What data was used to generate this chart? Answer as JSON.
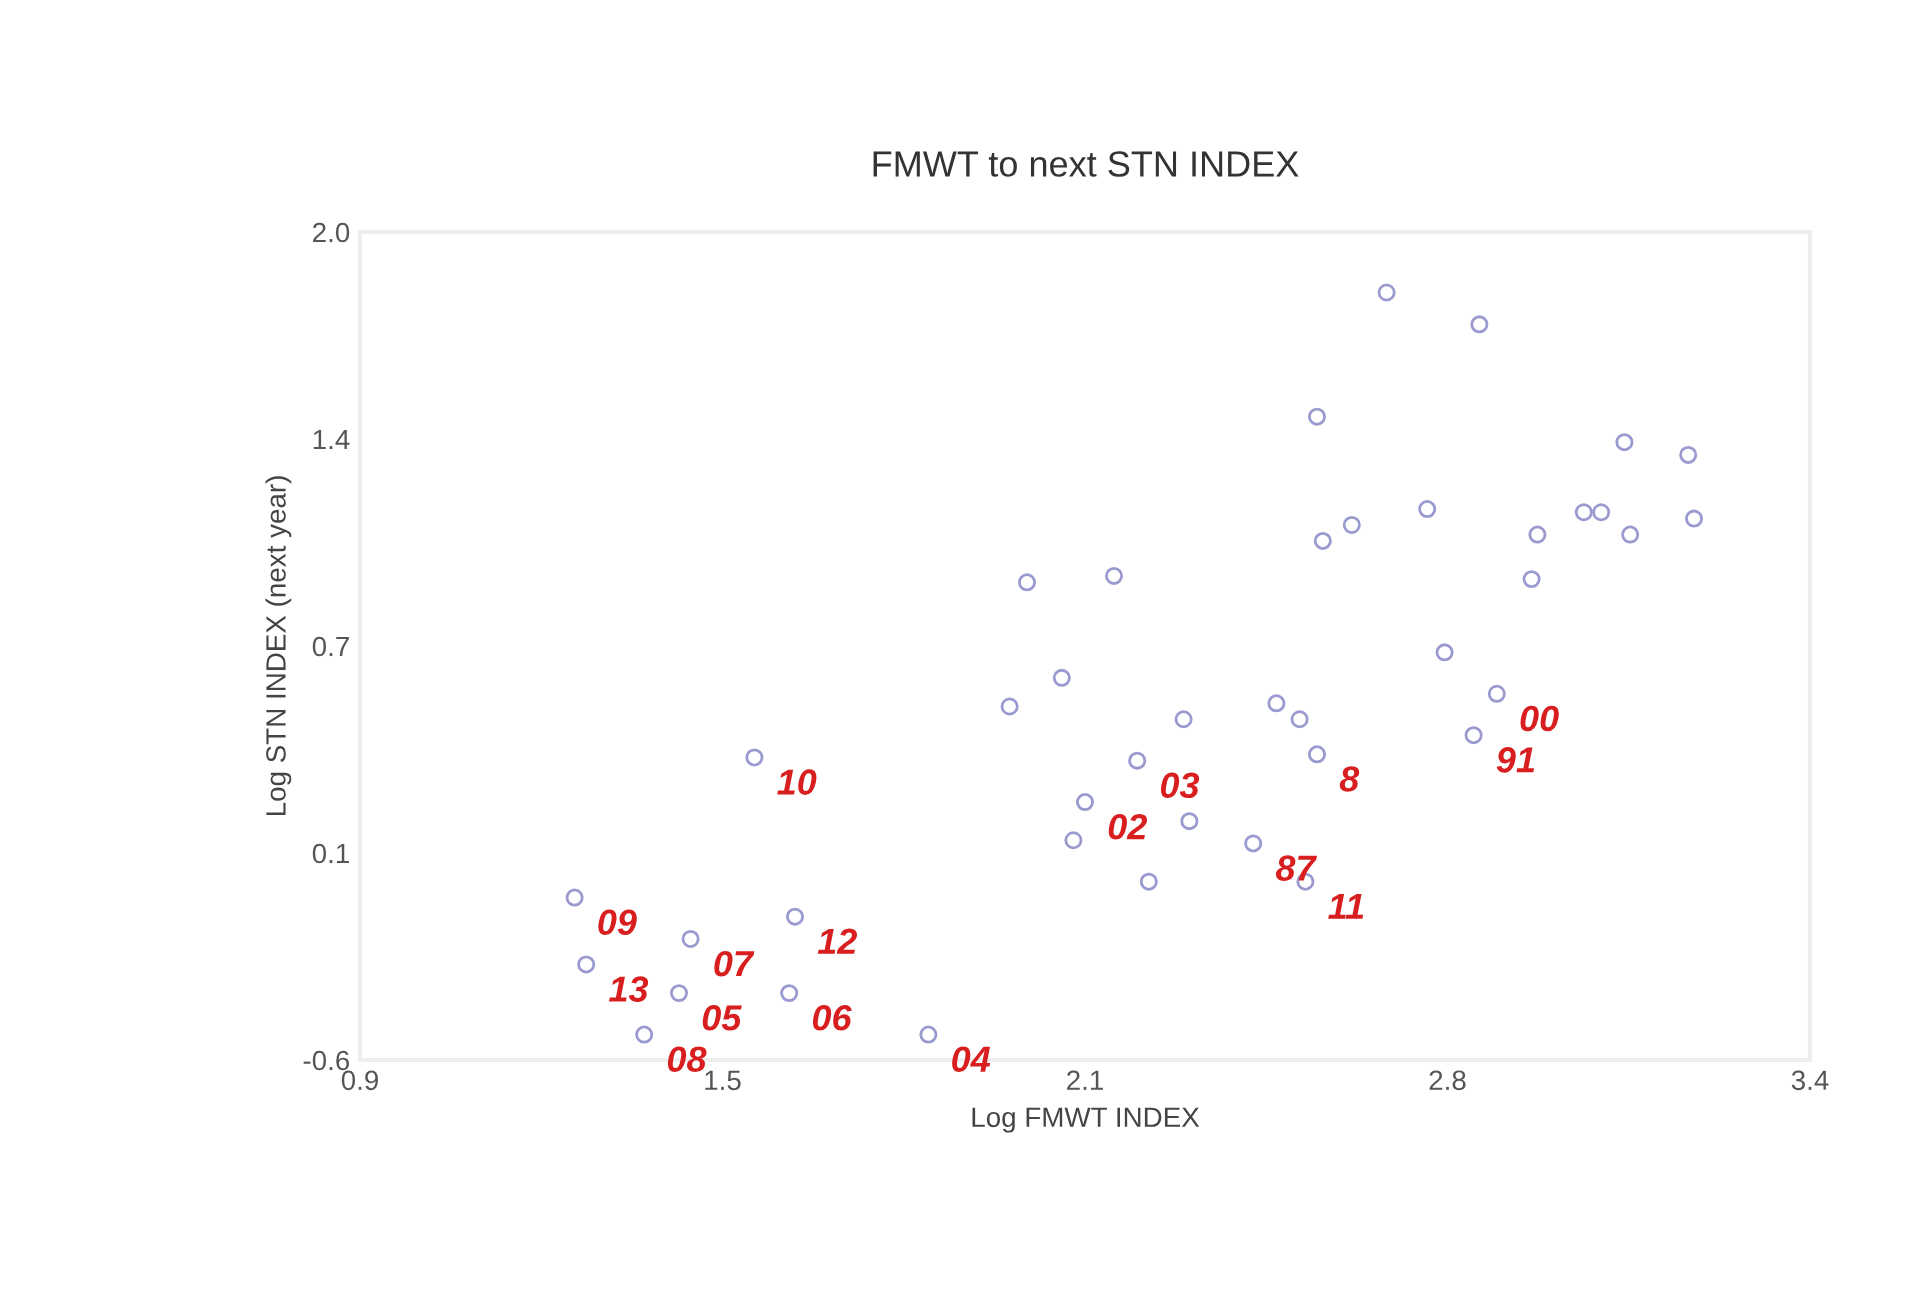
{
  "chart_data": {
    "type": "scatter",
    "title": "FMWT to next STN INDEX",
    "xlabel": "Log FMWT INDEX",
    "ylabel": "Log STN INDEX (next year)",
    "x": [
      2.67,
      2.83,
      2.55,
      3.08,
      3.19,
      2.74,
      2.56,
      2.61,
      3.01,
      3.04,
      2.93,
      3.09,
      3.2,
      2.92,
      2.05,
      2.2,
      2.77,
      2.11,
      2.02,
      2.86,
      2.32,
      2.48,
      2.52,
      2.24,
      2.82,
      2.15,
      2.33,
      2.13,
      2.26,
      2.44,
      2.53,
      1.58,
      1.27,
      1.65,
      1.47,
      1.29,
      1.45,
      1.64,
      1.39,
      1.88,
      2.55
    ],
    "series": [
      {
        "color": "#9a9ad0",
        "values": [
          1.81,
          1.71,
          1.42,
          1.34,
          1.3,
          1.13,
          1.03,
          1.08,
          1.12,
          1.12,
          1.05,
          1.05,
          1.1,
          0.91,
          0.9,
          0.92,
          0.68,
          0.6,
          0.51,
          0.55,
          0.47,
          0.52,
          0.47,
          0.34,
          0.42,
          0.21,
          0.15,
          0.09,
          -0.04,
          0.08,
          -0.04,
          0.35,
          -0.09,
          -0.15,
          -0.22,
          -0.3,
          -0.39,
          -0.39,
          -0.52,
          -0.52,
          0.36
        ]
      }
    ],
    "marker": "circle",
    "grid": false,
    "xlim": [
      0.9,
      3.4
    ],
    "xticks": [
      0.9,
      {
        "value": 1.525,
        "label": "1.5"
      },
      {
        "value": 2.15,
        "label": "2.1"
      },
      {
        "value": 2.775,
        "label": "2.8"
      },
      3.4
    ],
    "ylim": [
      -0.6,
      2.0
    ],
    "yticks": [
      -0.6,
      {
        "value": 0.05,
        "label": "0.1"
      },
      0.7,
      {
        "value": 1.35,
        "label": "1.4"
      },
      {
        "value": 2.0,
        "label": "2.0"
      }
    ],
    "annotations": [
      {
        "text": "10",
        "x": 1.58,
        "y": 0.35
      },
      {
        "text": "09",
        "x": 1.27,
        "y": -0.09
      },
      {
        "text": "07",
        "x": 1.47,
        "y": -0.22
      },
      {
        "text": "12",
        "x": 1.65,
        "y": -0.15
      },
      {
        "text": "13",
        "x": 1.29,
        "y": -0.3
      },
      {
        "text": "05",
        "x": 1.45,
        "y": -0.39
      },
      {
        "text": "06",
        "x": 1.64,
        "y": -0.39
      },
      {
        "text": "08",
        "x": 1.39,
        "y": -0.52
      },
      {
        "text": "11",
        "x": 2.53,
        "y": -0.04
      },
      {
        "text": "04",
        "x": 1.88,
        "y": -0.52
      },
      {
        "text": "02",
        "x": 2.15,
        "y": 0.21
      },
      {
        "text": "03",
        "x": 2.24,
        "y": 0.34
      },
      {
        "text": "87",
        "x": 2.44,
        "y": 0.08
      },
      {
        "text": "00",
        "x": 2.86,
        "y": 0.55
      },
      {
        "text": "91",
        "x": 2.82,
        "y": 0.42
      },
      {
        "text": "8",
        "x": 2.55,
        "y": 0.36
      }
    ]
  }
}
